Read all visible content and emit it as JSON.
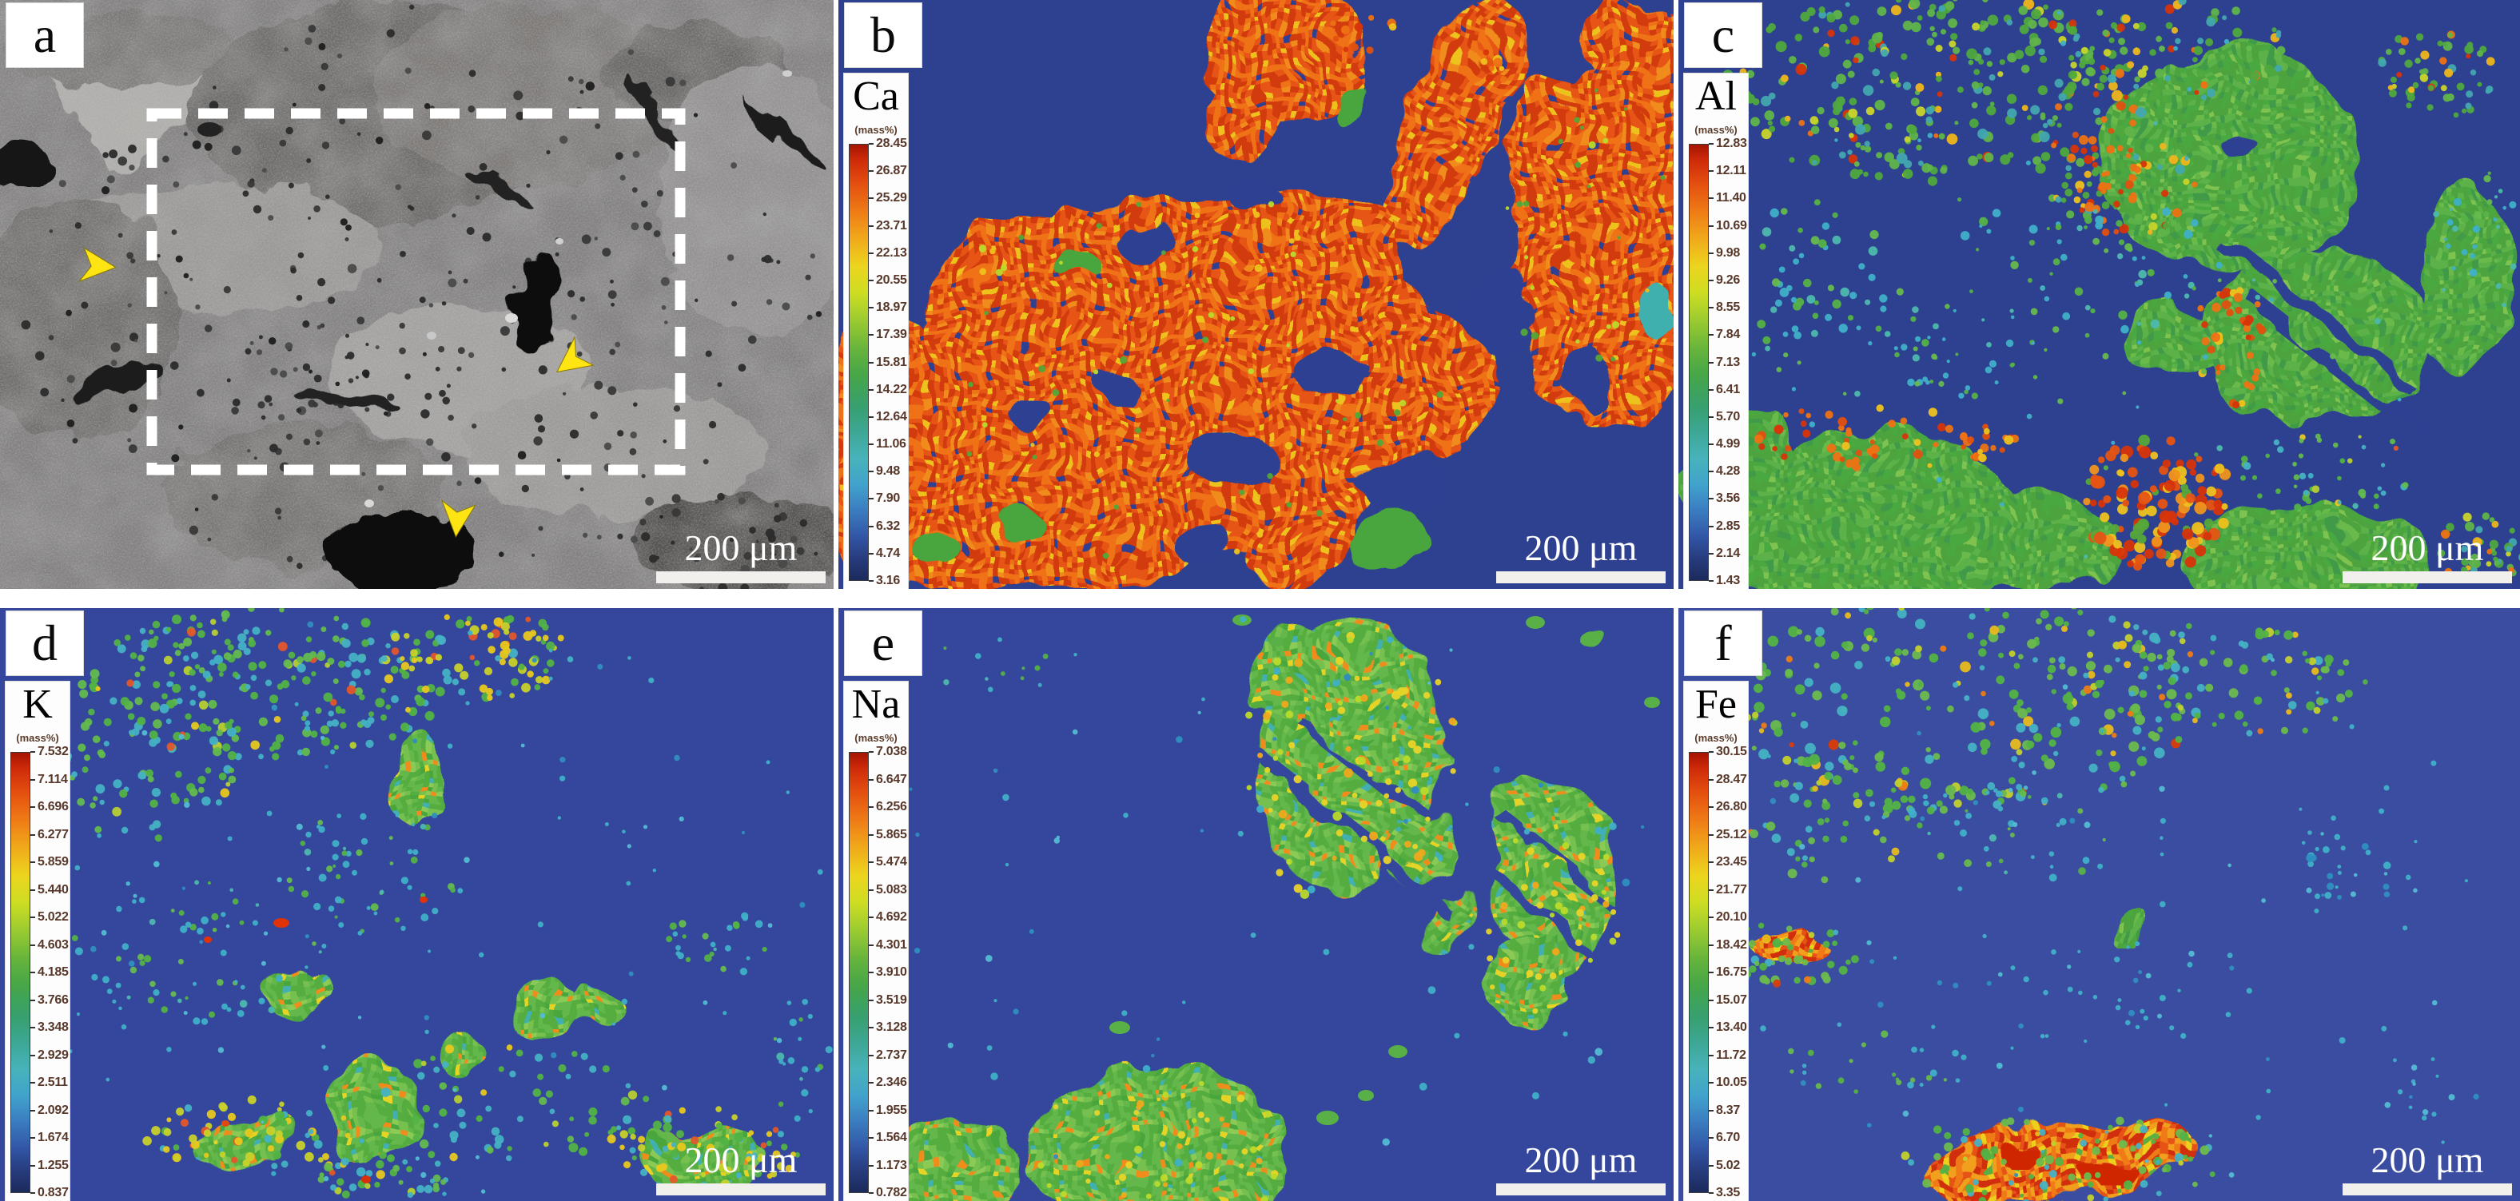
{
  "figure": {
    "scale_bar_label": "200 μm",
    "unit_label": "(mass%)",
    "panels": [
      {
        "letter": "a"
      },
      {
        "letter": "b",
        "element": "Ca",
        "scale_values": [
          "28.45",
          "26.87",
          "25.29",
          "23.71",
          "22.13",
          "20.55",
          "18.97",
          "17.39",
          "15.81",
          "14.22",
          "12.64",
          "11.06",
          "9.48",
          "7.90",
          "6.32",
          "4.74",
          "3.16"
        ]
      },
      {
        "letter": "c",
        "element": "Al",
        "scale_values": [
          "12.83",
          "12.11",
          "11.40",
          "10.69",
          "9.98",
          "9.26",
          "8.55",
          "7.84",
          "7.13",
          "6.41",
          "5.70",
          "4.99",
          "4.28",
          "3.56",
          "2.85",
          "2.14",
          "1.43"
        ]
      },
      {
        "letter": "d",
        "element": "K",
        "scale_values": [
          "7.532",
          "7.114",
          "6.696",
          "6.277",
          "5.859",
          "5.440",
          "5.022",
          "4.603",
          "4.185",
          "3.766",
          "3.348",
          "2.929",
          "2.511",
          "2.092",
          "1.674",
          "1.255",
          "0.837"
        ]
      },
      {
        "letter": "e",
        "element": "Na",
        "scale_values": [
          "7.038",
          "6.647",
          "6.256",
          "5.865",
          "5.474",
          "5.083",
          "4.692",
          "4.301",
          "3.910",
          "3.519",
          "3.128",
          "2.737",
          "2.346",
          "1.955",
          "1.564",
          "1.173",
          "0.782"
        ]
      },
      {
        "letter": "f",
        "element": "Fe",
        "scale_values": [
          "30.15",
          "28.47",
          "26.80",
          "25.12",
          "23.45",
          "21.77",
          "20.10",
          "18.42",
          "16.75",
          "15.07",
          "13.40",
          "11.72",
          "10.05",
          "8.37",
          "6.70",
          "5.02",
          "3.35"
        ]
      }
    ]
  }
}
